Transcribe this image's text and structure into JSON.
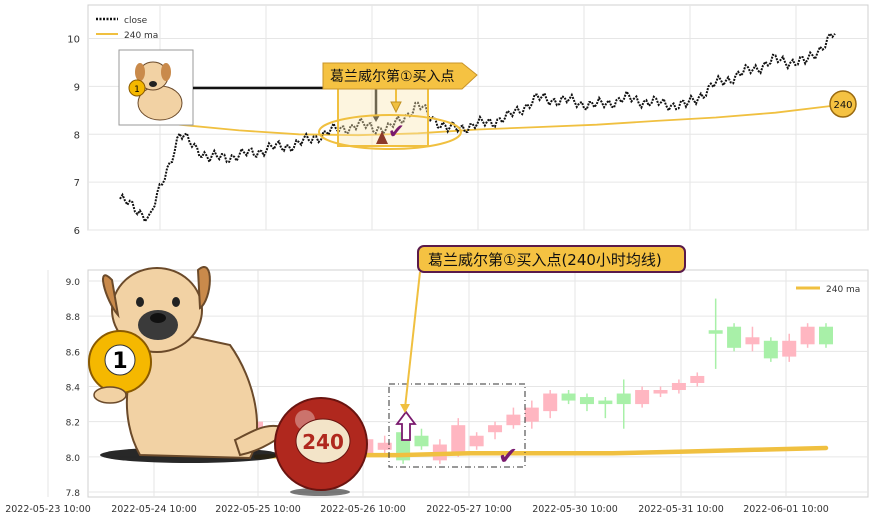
{
  "chart_data": [
    {
      "type": "line",
      "title": "",
      "xlabel": "",
      "ylabel": "",
      "ylim": [
        6,
        10.7
      ],
      "yticks": [
        6,
        7,
        8,
        9,
        10
      ],
      "grid": true,
      "legend_position": "top-left",
      "series": [
        {
          "name": "close",
          "style": "dotted",
          "color": "#111111",
          "x": [
            0,
            3,
            6,
            9,
            12,
            15,
            18,
            21,
            24,
            27,
            30,
            33,
            36,
            39,
            42,
            45,
            48,
            51,
            54,
            57,
            60,
            63,
            66,
            69,
            72
          ],
          "values": [
            6.65,
            6.25,
            8.0,
            7.5,
            7.55,
            7.7,
            7.8,
            8.05,
            8.2,
            8.1,
            8.6,
            8.1,
            8.2,
            8.35,
            8.75,
            8.7,
            8.6,
            8.75,
            8.65,
            8.6,
            9.05,
            9.3,
            9.55,
            9.5,
            10.1
          ]
        },
        {
          "name": "240 ma",
          "style": "solid",
          "color": "#f0c040",
          "x": [
            0,
            6,
            12,
            18,
            24,
            30,
            36,
            42,
            48,
            54,
            60,
            66,
            72
          ],
          "values": [
            8.35,
            8.2,
            8.08,
            8.0,
            7.98,
            8.02,
            8.1,
            8.15,
            8.2,
            8.28,
            8.35,
            8.45,
            8.6
          ]
        }
      ],
      "annotations": {
        "buy_point_label": "葛兰威尔第①买入点",
        "ma_badge": "240"
      }
    },
    {
      "type": "candlestick",
      "title": "",
      "xlabel": "",
      "ylabel": "",
      "ylim": [
        7.78,
        9.02
      ],
      "yticks": [
        "7.8",
        "8.0",
        "8.2",
        "8.4",
        "8.6",
        "8.8",
        "9.0"
      ],
      "grid": true,
      "legend_position": "top-right",
      "legend": [
        "240 ma"
      ],
      "x_tick_labels": [
        "2022-05-23 10:00",
        "2022-05-24 10:00",
        "2022-05-25 10:00",
        "2022-05-26 10:00",
        "2022-05-27 10:00",
        "2022-05-30 10:00",
        "2022-05-31 10:00",
        "2022-06-01 10:00"
      ],
      "candles": [
        {
          "i": 0,
          "o": 8.08,
          "h": 8.22,
          "l": 8.02,
          "c": 8.2
        },
        {
          "i": 1,
          "o": 8.12,
          "h": 8.18,
          "l": 8.08,
          "c": 8.1
        },
        {
          "i": 2,
          "o": 8.15,
          "h": 8.2,
          "l": 8.1,
          "c": 8.12
        },
        {
          "i": 3,
          "o": 8.0,
          "h": 8.17,
          "l": 7.98,
          "c": 8.15
        },
        {
          "i": 4,
          "o": 8.06,
          "h": 8.1,
          "l": 8.02,
          "c": 8.04
        },
        {
          "i": 5,
          "o": 8.1,
          "h": 8.22,
          "l": 7.95,
          "c": 7.98
        },
        {
          "i": 6,
          "o": 8.02,
          "h": 8.12,
          "l": 8.0,
          "c": 8.1
        },
        {
          "i": 7,
          "o": 8.04,
          "h": 8.12,
          "l": 8.02,
          "c": 8.08
        },
        {
          "i": 8,
          "o": 8.14,
          "h": 8.18,
          "l": 7.96,
          "c": 7.98
        },
        {
          "i": 9,
          "o": 8.12,
          "h": 8.16,
          "l": 8.04,
          "c": 8.06
        },
        {
          "i": 10,
          "o": 7.98,
          "h": 8.1,
          "l": 7.96,
          "c": 8.07
        },
        {
          "i": 11,
          "o": 8.02,
          "h": 8.22,
          "l": 8.0,
          "c": 8.18
        },
        {
          "i": 12,
          "o": 8.06,
          "h": 8.14,
          "l": 8.04,
          "c": 8.12
        },
        {
          "i": 13,
          "o": 8.14,
          "h": 8.2,
          "l": 8.1,
          "c": 8.18
        },
        {
          "i": 14,
          "o": 8.18,
          "h": 8.28,
          "l": 8.16,
          "c": 8.24
        },
        {
          "i": 15,
          "o": 8.2,
          "h": 8.32,
          "l": 8.16,
          "c": 8.28
        },
        {
          "i": 16,
          "o": 8.26,
          "h": 8.38,
          "l": 8.22,
          "c": 8.36
        },
        {
          "i": 17,
          "o": 8.36,
          "h": 8.38,
          "l": 8.3,
          "c": 8.32
        },
        {
          "i": 18,
          "o": 8.34,
          "h": 8.36,
          "l": 8.26,
          "c": 8.3
        },
        {
          "i": 19,
          "o": 8.32,
          "h": 8.34,
          "l": 8.22,
          "c": 8.3
        },
        {
          "i": 20,
          "o": 8.36,
          "h": 8.44,
          "l": 8.16,
          "c": 8.3
        },
        {
          "i": 21,
          "o": 8.3,
          "h": 8.4,
          "l": 8.28,
          "c": 8.38
        },
        {
          "i": 22,
          "o": 8.36,
          "h": 8.4,
          "l": 8.34,
          "c": 8.38
        },
        {
          "i": 23,
          "o": 8.38,
          "h": 8.44,
          "l": 8.36,
          "c": 8.42
        },
        {
          "i": 24,
          "o": 8.42,
          "h": 8.48,
          "l": 8.4,
          "c": 8.46
        },
        {
          "i": 25,
          "o": 8.72,
          "h": 8.9,
          "l": 8.5,
          "c": 8.7
        },
        {
          "i": 26,
          "o": 8.74,
          "h": 8.76,
          "l": 8.6,
          "c": 8.62
        },
        {
          "i": 27,
          "o": 8.64,
          "h": 8.74,
          "l": 8.6,
          "c": 8.68
        },
        {
          "i": 28,
          "o": 8.66,
          "h": 8.68,
          "l": 8.54,
          "c": 8.56
        },
        {
          "i": 29,
          "o": 8.57,
          "h": 8.7,
          "l": 8.54,
          "c": 8.66
        },
        {
          "i": 30,
          "o": 8.64,
          "h": 8.76,
          "l": 8.62,
          "c": 8.74
        },
        {
          "i": 31,
          "o": 8.74,
          "h": 8.76,
          "l": 8.62,
          "c": 8.64
        }
      ],
      "ma_240": [
        8.0,
        8.01,
        8.01,
        8.02,
        8.02,
        8.02,
        8.03,
        8.04,
        8.05
      ],
      "annotations": {
        "buy_point_label": "葛兰威尔第①买入点(240小时均线)",
        "ball_number": "1",
        "ball_240": "240"
      }
    }
  ],
  "colors": {
    "up": "#ffb6c1",
    "down": "#a8f0a8",
    "ma": "#f0c040",
    "close": "#111111",
    "check": "#7a1a6e",
    "label_bg": "#f5c242"
  }
}
